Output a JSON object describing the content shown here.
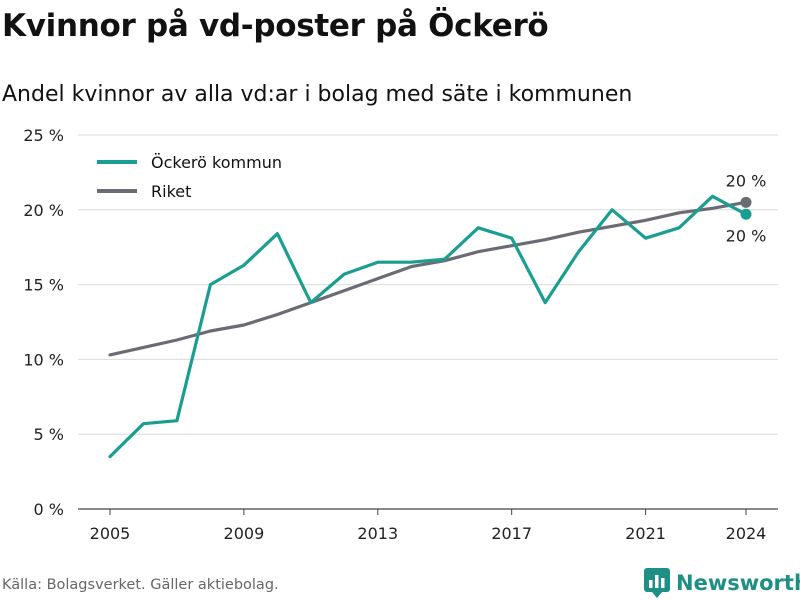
{
  "title": "Kvinnor på vd-poster på Öckerö",
  "subtitle": "Andel kvinnor av alla vd:ar i bolag med säte i kommunen",
  "source": "Källa: Bolagsverket. Gäller aktiebolag.",
  "brand": {
    "name": "Newsworthy",
    "logo_icon": "newsworthy-bar-chart-icon"
  },
  "chart_data": {
    "type": "line",
    "x": [
      2005,
      2006,
      2007,
      2008,
      2009,
      2010,
      2011,
      2012,
      2013,
      2014,
      2015,
      2016,
      2017,
      2018,
      2019,
      2020,
      2021,
      2022,
      2023,
      2024
    ],
    "series": [
      {
        "name": "Öckerö kommun",
        "color": "#1a9e91",
        "values": [
          3.5,
          5.7,
          5.9,
          15.0,
          16.3,
          18.4,
          13.8,
          15.7,
          16.5,
          16.5,
          16.7,
          18.8,
          18.1,
          13.8,
          17.2,
          20.0,
          18.1,
          18.8,
          20.9,
          19.7
        ],
        "end_label": "20 %"
      },
      {
        "name": "Riket",
        "color": "#6b6b73",
        "values": [
          10.3,
          10.8,
          11.3,
          11.9,
          12.3,
          13.0,
          13.8,
          14.6,
          15.4,
          16.2,
          16.6,
          17.2,
          17.6,
          18.0,
          18.5,
          18.9,
          19.3,
          19.8,
          20.1,
          20.5
        ],
        "end_label": "20 %"
      }
    ],
    "x_ticks": [
      2005,
      2009,
      2013,
      2017,
      2021,
      2024
    ],
    "y_ticks": [
      0,
      5,
      10,
      15,
      20,
      25
    ],
    "y_tick_labels": [
      "0 %",
      "5 %",
      "10 %",
      "15 %",
      "20 %",
      "25 %"
    ],
    "ylim": [
      0,
      25
    ],
    "xlim": [
      2005,
      2024
    ],
    "grid": true,
    "legend_position": "top-left"
  }
}
